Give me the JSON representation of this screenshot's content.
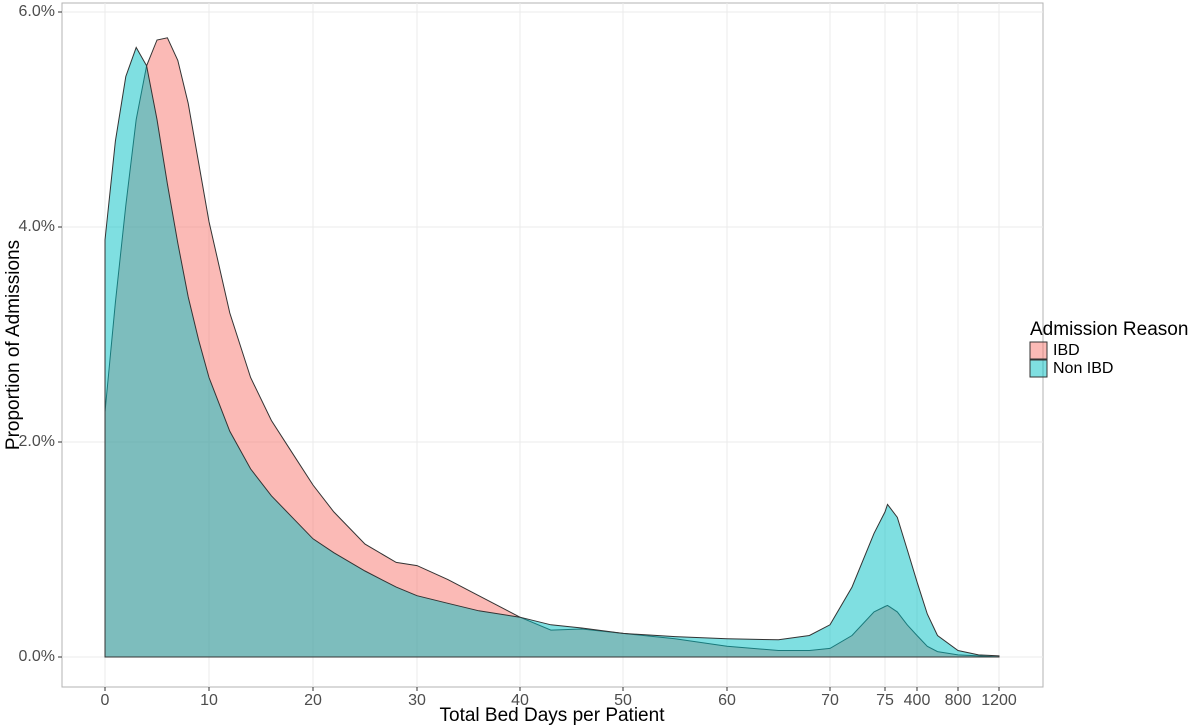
{
  "chart_data": {
    "type": "area",
    "x_label": "Total Bed Days per Patient",
    "y_label": "Proportion of Admissions",
    "legend_title": "Admission Reason",
    "legend": "right",
    "grid": true,
    "x": [
      0,
      1,
      2,
      3,
      4,
      5,
      6,
      7,
      8,
      9,
      10,
      12,
      14,
      16,
      18,
      20,
      22,
      25,
      28,
      30,
      33,
      36,
      40,
      43,
      46,
      50,
      55,
      60,
      65,
      68,
      70,
      72,
      74,
      75,
      100,
      200,
      300,
      400,
      500,
      600,
      800,
      1000,
      1200
    ],
    "series": [
      {
        "name": "IBD",
        "color": "#F8766D",
        "values": [
          2.28,
          3.3,
          4.2,
          5.0,
          5.5,
          5.74,
          5.76,
          5.55,
          5.15,
          4.6,
          4.05,
          3.2,
          2.6,
          2.2,
          1.9,
          1.6,
          1.35,
          1.05,
          0.88,
          0.85,
          0.72,
          0.57,
          0.37,
          0.25,
          0.26,
          0.22,
          0.17,
          0.1,
          0.06,
          0.06,
          0.08,
          0.2,
          0.42,
          0.47,
          0.48,
          0.42,
          0.3,
          0.2,
          0.1,
          0.05,
          0.02,
          0.01,
          0.0
        ]
      },
      {
        "name": "Non IBD",
        "color": "#00BFC4",
        "values": [
          3.88,
          4.8,
          5.4,
          5.67,
          5.5,
          5.0,
          4.4,
          3.85,
          3.35,
          2.95,
          2.6,
          2.1,
          1.75,
          1.5,
          1.3,
          1.1,
          0.97,
          0.8,
          0.65,
          0.57,
          0.5,
          0.43,
          0.37,
          0.3,
          0.27,
          0.22,
          0.19,
          0.17,
          0.16,
          0.2,
          0.3,
          0.65,
          1.15,
          1.35,
          1.42,
          1.3,
          1.0,
          0.7,
          0.4,
          0.2,
          0.06,
          0.02,
          0.01
        ]
      }
    ],
    "xlim": [
      0,
      1200
    ],
    "xticks": [
      0,
      10,
      20,
      30,
      40,
      50,
      60,
      70,
      75,
      400,
      800,
      1200
    ],
    "ylim": [
      0,
      6
    ],
    "yticks": [
      {
        "value": 0,
        "label": "0.0%"
      },
      {
        "value": 2,
        "label": "2.0%"
      },
      {
        "value": 4,
        "label": "4.0%"
      },
      {
        "value": 6,
        "label": "6.0%"
      }
    ]
  }
}
